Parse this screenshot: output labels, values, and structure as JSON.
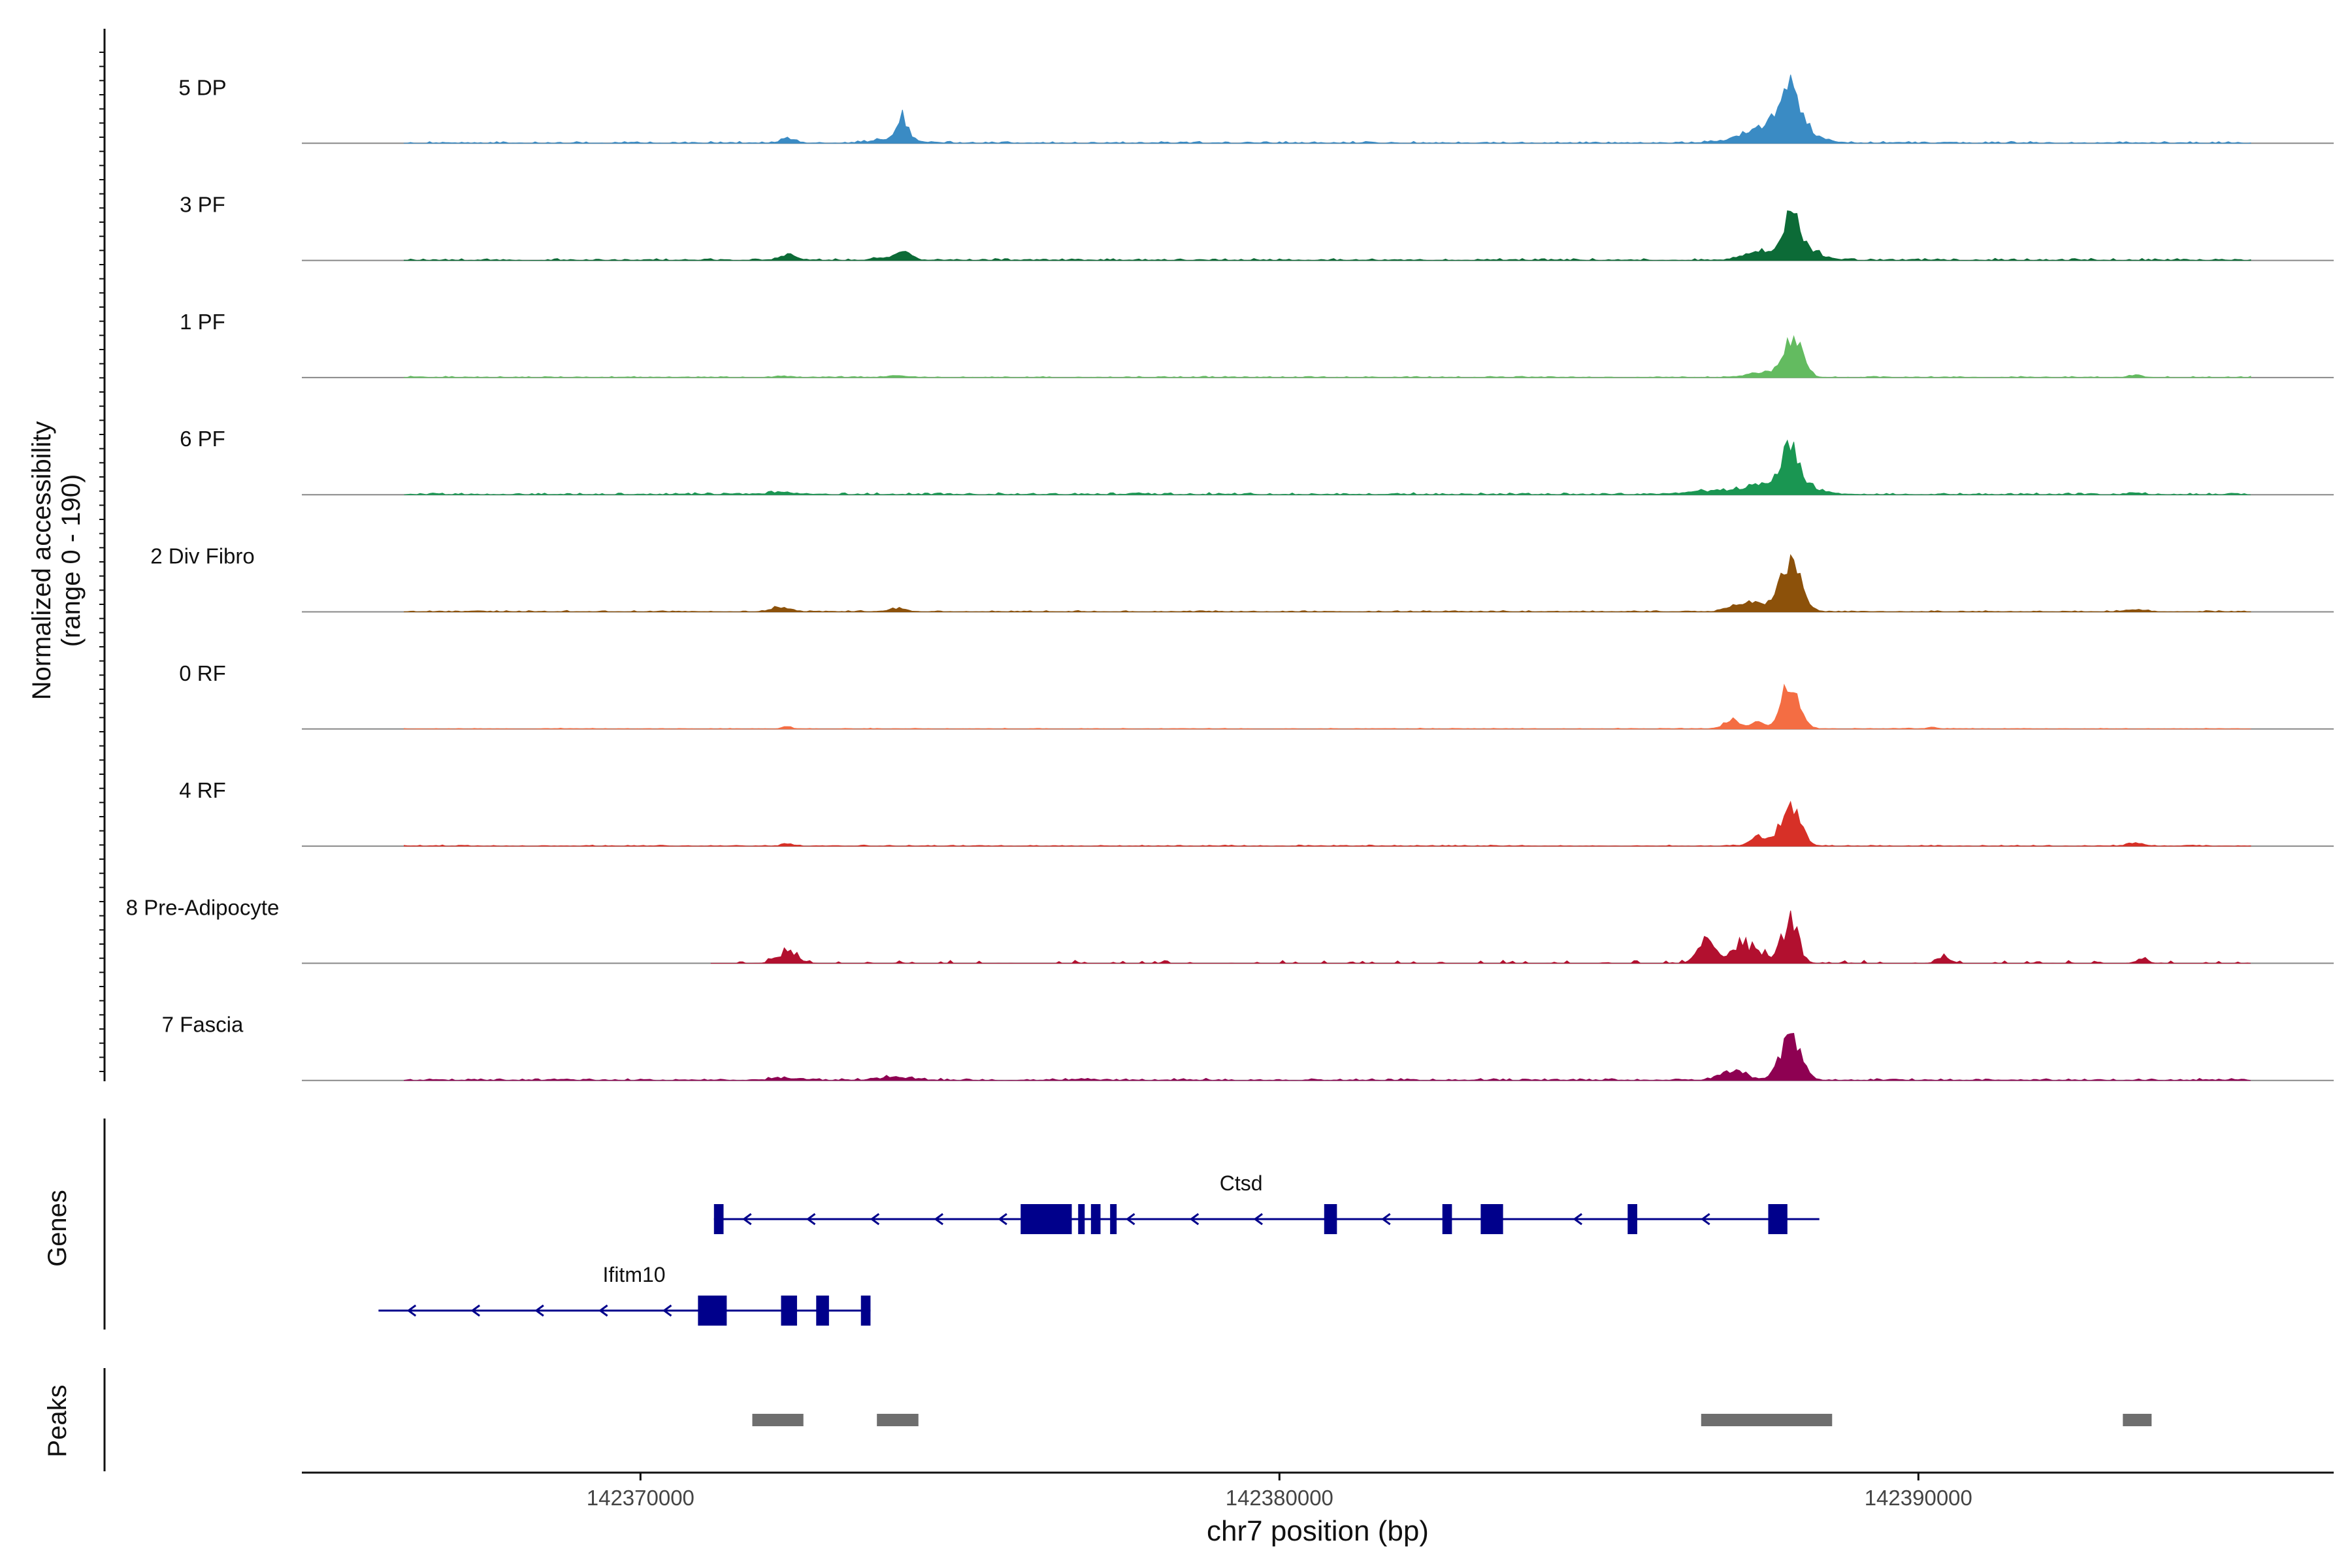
{
  "chart_data": {
    "type": "area",
    "title": "",
    "ylabel_line1": "Normalized accessibility",
    "ylabel_line2": "(range 0 - 190)",
    "xlabel": "chr7 position (bp)",
    "xlim": [
      142364700,
      142396500
    ],
    "x_ticks": [
      142370000,
      142380000,
      142390000
    ],
    "x_tick_labels": [
      "142370000",
      "142380000",
      "142390000"
    ],
    "signal_range": [
      0,
      190
    ],
    "coverage_domain": [
      142366300,
      142395200
    ],
    "tracks": [
      {
        "name": "5 DP",
        "color": "#3a8bc4",
        "noise": 0.012,
        "seed": 3,
        "peaks": [
          [
            142372300,
            6,
            120
          ],
          [
            142374100,
            28,
            70
          ],
          [
            142374000,
            8,
            250
          ],
          [
            142387400,
            10,
            350
          ],
          [
            142387800,
            12,
            250
          ],
          [
            142388000,
            45,
            130
          ],
          [
            142388050,
            20,
            320
          ]
        ]
      },
      {
        "name": "3 PF",
        "color": "#0c6b37",
        "noise": 0.012,
        "seed": 7,
        "peaks": [
          [
            142372300,
            8,
            120
          ],
          [
            142374100,
            12,
            120
          ],
          [
            142373700,
            4,
            100
          ],
          [
            142387400,
            9,
            200
          ],
          [
            142388000,
            44,
            120
          ],
          [
            142388050,
            22,
            300
          ]
        ]
      },
      {
        "name": "1 PF",
        "color": "#63bb60",
        "noise": 0.008,
        "seed": 11,
        "peaks": [
          [
            142372200,
            2,
            100
          ],
          [
            142374000,
            2,
            150
          ],
          [
            142387400,
            5,
            150
          ],
          [
            142387700,
            6,
            130
          ],
          [
            142388050,
            58,
            140
          ],
          [
            142393400,
            4,
            80
          ]
        ]
      },
      {
        "name": "6 PF",
        "color": "#1a9652",
        "noise": 0.012,
        "seed": 13,
        "peaks": [
          [
            142372200,
            3,
            200
          ],
          [
            142386900,
            5,
            500
          ],
          [
            142387600,
            8,
            300
          ],
          [
            142388000,
            42,
            120
          ],
          [
            142388050,
            18,
            300
          ],
          [
            142393400,
            3,
            100
          ]
        ]
      },
      {
        "name": "2 Div Fibro",
        "color": "#8c510a",
        "noise": 0.008,
        "seed": 17,
        "peaks": [
          [
            142372200,
            6,
            150
          ],
          [
            142374000,
            4,
            150
          ],
          [
            142387400,
            14,
            250
          ],
          [
            142388000,
            66,
            160
          ],
          [
            142393400,
            3,
            150
          ]
        ]
      },
      {
        "name": "0 RF",
        "color": "#f46d43",
        "noise": 0.005,
        "seed": 19,
        "peaks": [
          [
            142372300,
            3,
            80
          ],
          [
            142387100,
            12,
            130
          ],
          [
            142387500,
            9,
            100
          ],
          [
            142388000,
            63,
            140
          ],
          [
            142390200,
            2,
            80
          ]
        ]
      },
      {
        "name": "4 RF",
        "color": "#d73027",
        "noise": 0.007,
        "seed": 23,
        "peaks": [
          [
            142372300,
            3,
            80
          ],
          [
            142387500,
            14,
            130
          ],
          [
            142388000,
            57,
            150
          ],
          [
            142393400,
            5,
            120
          ]
        ]
      },
      {
        "name": "8 Pre-Adipocyte",
        "color": "#b2102f",
        "noise": 0.012,
        "seed": 29,
        "sparse": true,
        "peaks": [
          [
            142372300,
            20,
            150
          ],
          [
            142386700,
            38,
            150
          ],
          [
            142387200,
            26,
            150
          ],
          [
            142387500,
            18,
            200
          ],
          [
            142388000,
            70,
            120
          ],
          [
            142390400,
            10,
            100
          ],
          [
            142393500,
            10,
            80
          ]
        ]
      },
      {
        "name": "7 Fascia",
        "color": "#8e0152",
        "noise": 0.012,
        "seed": 31,
        "peaks": [
          [
            142372300,
            3,
            200
          ],
          [
            142374000,
            4,
            250
          ],
          [
            142387100,
            12,
            200
          ],
          [
            142388000,
            58,
            160
          ]
        ]
      }
    ],
    "genes": [
      {
        "name": "Ctsd",
        "strand": "-",
        "start": 142371150,
        "end": 142388450,
        "exons": [
          [
            142371150,
            142371300
          ],
          [
            142375950,
            142376750
          ],
          [
            142376850,
            142376950
          ],
          [
            142377050,
            142377200
          ],
          [
            142377350,
            142377450
          ],
          [
            142380700,
            142380900
          ],
          [
            142382550,
            142382700
          ],
          [
            142383150,
            142383500
          ],
          [
            142385450,
            142385600
          ],
          [
            142387650,
            142387950
          ]
        ]
      },
      {
        "name": "Ifitm10",
        "strand": "-",
        "start": 142365900,
        "end": 142373600,
        "exons": [
          [
            142370900,
            142371350
          ],
          [
            142372200,
            142372450
          ],
          [
            142372750,
            142372950
          ],
          [
            142373450,
            142373600
          ]
        ]
      }
    ],
    "peaks_track": [
      [
        142371750,
        142372550
      ],
      [
        142373700,
        142374350
      ],
      [
        142386600,
        142388650
      ],
      [
        142393200,
        142393650
      ]
    ],
    "panel_labels": {
      "genes": "Genes",
      "peaks": "Peaks"
    }
  }
}
